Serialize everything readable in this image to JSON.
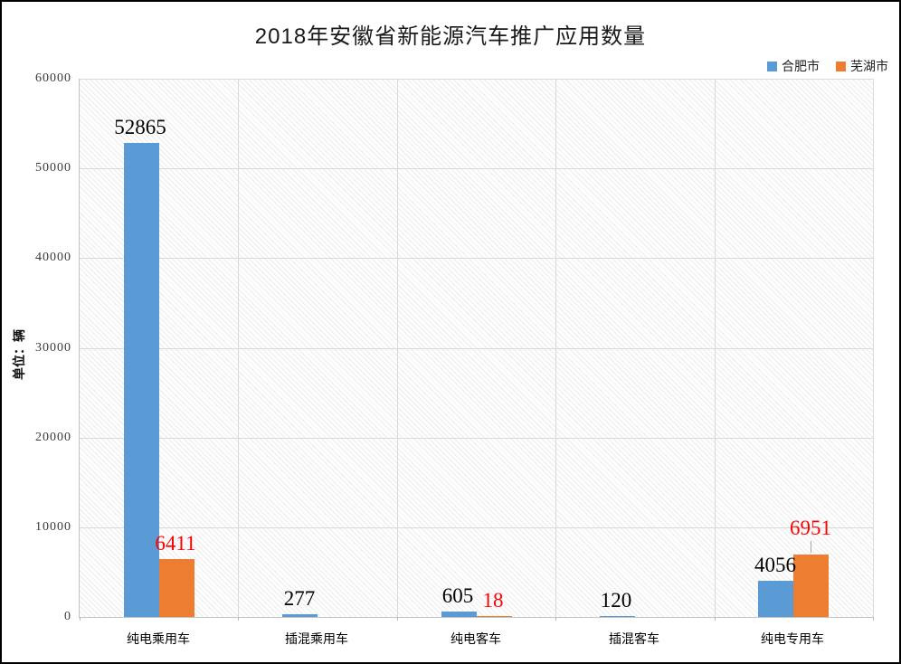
{
  "page": {
    "background": "#ffffff",
    "border_color": "#000000"
  },
  "chart_data": {
    "type": "bar",
    "title": "2018年安徽省新能源汽车推广应用数量",
    "ylabel": "单位：辆",
    "categories": [
      "纯电乘用车",
      "插混乘用车",
      "纯电客车",
      "插混客车",
      "纯电专用车"
    ],
    "series": [
      {
        "name": "合肥市",
        "color": "#5B9BD5",
        "label_color": "#000000",
        "values": [
          52865,
          277,
          605,
          120,
          4056
        ]
      },
      {
        "name": "芜湖市",
        "color": "#ED7D31",
        "label_color": "#FF0000",
        "values": [
          6411,
          null,
          18,
          null,
          6951
        ],
        "label_raise": [
          0,
          0,
          0,
          0,
          12
        ],
        "leader": [
          false,
          false,
          false,
          false,
          true
        ]
      }
    ],
    "ylim": [
      0,
      60000
    ],
    "ytick_step": 10000,
    "ytick_labels": [
      "0",
      "10000",
      "20000",
      "30000",
      "40000",
      "50000",
      "60000"
    ],
    "legend_position": "top-right",
    "grid": true,
    "colors": {
      "gridline": "#d9d9d9",
      "axis": "#c3c3c3",
      "hatch": "#ebebeb",
      "leader_line": "#a6a6a6"
    }
  }
}
